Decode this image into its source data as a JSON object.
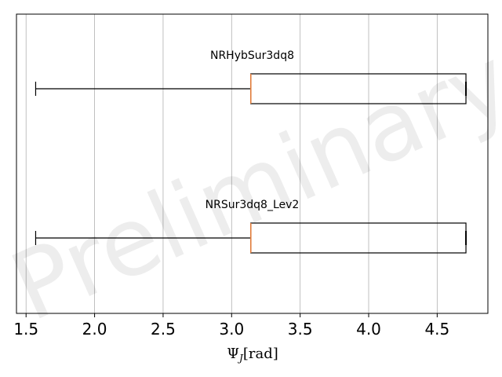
{
  "chart_data": {
    "type": "boxplot",
    "orientation": "horizontal",
    "xlabel": "Ψ_J [rad]",
    "xlim": [
      1.43,
      4.87
    ],
    "xticks": [
      1.5,
      2.0,
      2.5,
      3.0,
      3.5,
      4.0,
      4.5
    ],
    "xtick_labels": [
      "1.5",
      "2.0",
      "2.5",
      "3.0",
      "3.5",
      "4.0",
      "4.5"
    ],
    "grid": "vertical",
    "watermark": "Preliminary",
    "median_color": "#e07b39",
    "box_color": "#000000",
    "boxes": [
      {
        "name": "NRHybSur3dq8",
        "whisker_low": 1.57,
        "q1": 3.14,
        "median": 3.14,
        "q3": 4.71,
        "whisker_high": 4.71
      },
      {
        "name": "NRSur3dq8_Lev2",
        "whisker_low": 1.57,
        "q1": 3.14,
        "median": 3.14,
        "q3": 4.71,
        "whisker_high": 4.71
      }
    ]
  }
}
